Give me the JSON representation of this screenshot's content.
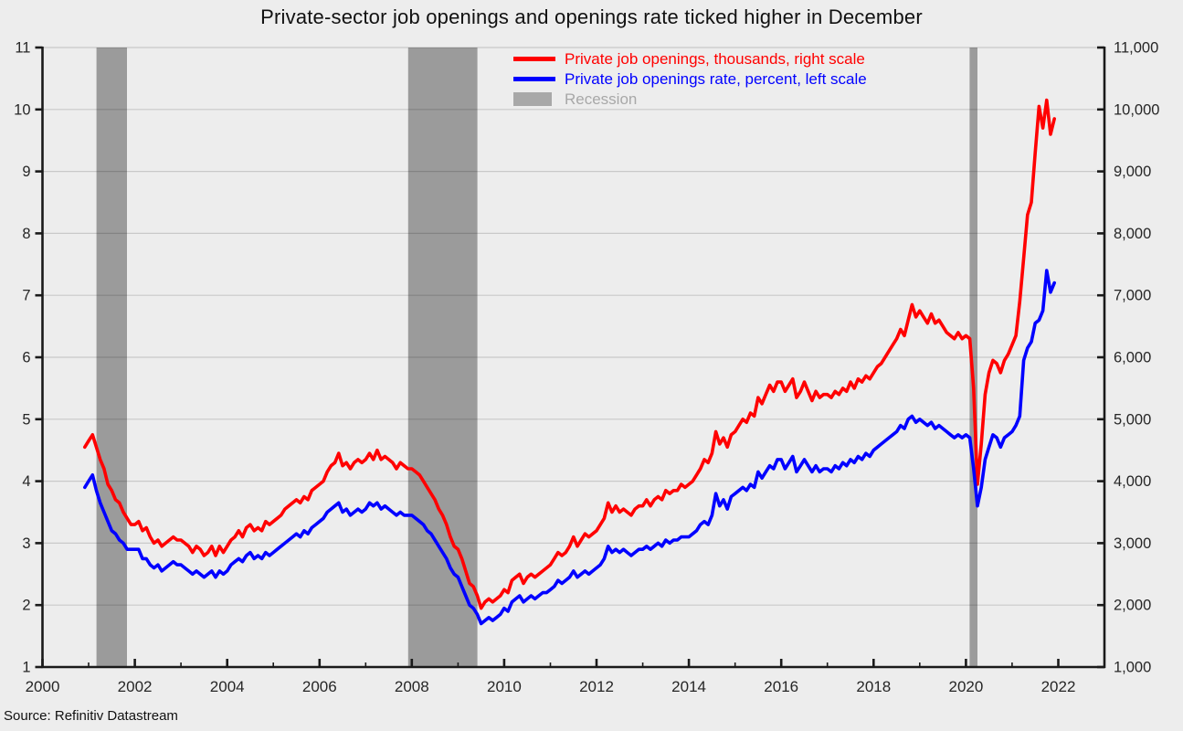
{
  "chart_data": {
    "type": "line",
    "title": "Private-sector job openings and openings rate ticked higher in December",
    "source": "Source: Refinitiv Datastream",
    "recession_label": "Recession",
    "x_axis": {
      "range": [
        2000,
        2023
      ],
      "major_ticks": [
        2000,
        2002,
        2004,
        2006,
        2008,
        2010,
        2012,
        2014,
        2016,
        2018,
        2020,
        2022
      ],
      "minor_ticks": [
        2001,
        2003,
        2005,
        2007,
        2009,
        2011,
        2013,
        2015,
        2017,
        2019,
        2021
      ]
    },
    "left_axis": {
      "units": "percent",
      "min": 1,
      "max": 11,
      "ticks": [
        1,
        2,
        3,
        4,
        5,
        6,
        7,
        8,
        9,
        10,
        11
      ],
      "tick_labels": [
        "1",
        "2",
        "3",
        "4",
        "5",
        "6",
        "7",
        "8",
        "9",
        "10",
        "11"
      ]
    },
    "right_axis": {
      "units": "thousands",
      "min": 1000,
      "max": 11000,
      "ticks": [
        1000,
        2000,
        3000,
        4000,
        5000,
        6000,
        7000,
        8000,
        9000,
        10000,
        11000
      ],
      "tick_labels": [
        "1,000",
        "2,000",
        "3,000",
        "4,000",
        "5,000",
        "6,000",
        "7,000",
        "8,000",
        "9,000",
        "10,000",
        "11,000"
      ]
    },
    "grid": {
      "horizontal": true,
      "vertical": false
    },
    "legend_position": "top-center",
    "recessions": [
      {
        "start": 2001.17,
        "end": 2001.83
      },
      {
        "start": 2007.92,
        "end": 2009.42
      },
      {
        "start": 2020.08,
        "end": 2020.25
      }
    ],
    "colors": {
      "background": "#ededed",
      "recession": "#9b9b9b",
      "recession_text": "#a8a8a8",
      "grid": "rgba(0,0,0,0.15)",
      "axis": "#1a1a1a",
      "tick_text": "#262626",
      "red_series": "#ff0000",
      "blue_series": "#0000ff"
    },
    "series": [
      {
        "name": "Private job openings, thousands, right scale",
        "color": "#ff0000",
        "axis": "right",
        "start_year": 2000.9167,
        "points_per_year": 12,
        "values": [
          4550,
          4650,
          4750,
          4550,
          4350,
          4200,
          3950,
          3850,
          3700,
          3650,
          3500,
          3400,
          3300,
          3300,
          3350,
          3200,
          3250,
          3100,
          3000,
          3050,
          2950,
          3000,
          3050,
          3100,
          3050,
          3050,
          3000,
          2950,
          2850,
          2950,
          2900,
          2800,
          2850,
          2950,
          2800,
          2950,
          2850,
          2950,
          3050,
          3100,
          3200,
          3100,
          3250,
          3300,
          3200,
          3250,
          3200,
          3350,
          3300,
          3350,
          3400,
          3450,
          3550,
          3600,
          3650,
          3700,
          3650,
          3750,
          3700,
          3850,
          3900,
          3950,
          4000,
          4150,
          4250,
          4300,
          4450,
          4250,
          4300,
          4200,
          4300,
          4350,
          4300,
          4350,
          4450,
          4350,
          4500,
          4350,
          4400,
          4350,
          4300,
          4200,
          4300,
          4250,
          4200,
          4200,
          4150,
          4100,
          4000,
          3900,
          3800,
          3700,
          3550,
          3450,
          3300,
          3100,
          2950,
          2900,
          2750,
          2550,
          2350,
          2300,
          2150,
          1950,
          2050,
          2100,
          2050,
          2100,
          2150,
          2250,
          2200,
          2400,
          2450,
          2500,
          2350,
          2450,
          2500,
          2450,
          2500,
          2550,
          2600,
          2650,
          2750,
          2850,
          2800,
          2850,
          2950,
          3100,
          2950,
          3050,
          3150,
          3100,
          3150,
          3200,
          3300,
          3400,
          3650,
          3500,
          3600,
          3500,
          3550,
          3500,
          3450,
          3550,
          3600,
          3600,
          3700,
          3600,
          3700,
          3750,
          3700,
          3850,
          3800,
          3850,
          3850,
          3950,
          3900,
          3950,
          4000,
          4100,
          4200,
          4350,
          4300,
          4450,
          4800,
          4600,
          4700,
          4550,
          4750,
          4800,
          4900,
          5000,
          4950,
          5100,
          5050,
          5350,
          5250,
          5400,
          5550,
          5450,
          5600,
          5600,
          5450,
          5550,
          5650,
          5350,
          5450,
          5600,
          5450,
          5300,
          5450,
          5350,
          5400,
          5400,
          5350,
          5450,
          5400,
          5500,
          5450,
          5600,
          5500,
          5650,
          5600,
          5700,
          5650,
          5750,
          5850,
          5900,
          6000,
          6100,
          6200,
          6300,
          6450,
          6350,
          6600,
          6850,
          6650,
          6750,
          6650,
          6550,
          6700,
          6550,
          6600,
          6500,
          6400,
          6350,
          6300,
          6400,
          6300,
          6350,
          6300,
          5500,
          3950,
          4600,
          5400,
          5750,
          5950,
          5900,
          5750,
          5950,
          6050,
          6200,
          6350,
          6900,
          7600,
          8300,
          8500,
          9300,
          10050,
          9700,
          10150,
          9600,
          9850
        ]
      },
      {
        "name": "Private job openings rate, percent, left scale",
        "color": "#0000ff",
        "axis": "left",
        "start_year": 2000.9167,
        "points_per_year": 12,
        "values": [
          3.9,
          4.0,
          4.1,
          3.85,
          3.65,
          3.5,
          3.35,
          3.2,
          3.15,
          3.05,
          3.0,
          2.9,
          2.9,
          2.9,
          2.9,
          2.75,
          2.75,
          2.65,
          2.6,
          2.65,
          2.55,
          2.6,
          2.65,
          2.7,
          2.65,
          2.65,
          2.6,
          2.55,
          2.5,
          2.55,
          2.5,
          2.45,
          2.5,
          2.55,
          2.45,
          2.55,
          2.5,
          2.55,
          2.65,
          2.7,
          2.75,
          2.7,
          2.8,
          2.85,
          2.75,
          2.8,
          2.75,
          2.85,
          2.8,
          2.85,
          2.9,
          2.95,
          3.0,
          3.05,
          3.1,
          3.15,
          3.1,
          3.2,
          3.15,
          3.25,
          3.3,
          3.35,
          3.4,
          3.5,
          3.55,
          3.6,
          3.65,
          3.5,
          3.55,
          3.45,
          3.5,
          3.55,
          3.5,
          3.55,
          3.65,
          3.6,
          3.65,
          3.55,
          3.6,
          3.55,
          3.5,
          3.45,
          3.5,
          3.45,
          3.45,
          3.45,
          3.4,
          3.35,
          3.3,
          3.2,
          3.15,
          3.05,
          2.95,
          2.85,
          2.75,
          2.6,
          2.5,
          2.45,
          2.3,
          2.15,
          2.0,
          1.95,
          1.85,
          1.7,
          1.75,
          1.8,
          1.75,
          1.8,
          1.85,
          1.95,
          1.9,
          2.05,
          2.1,
          2.15,
          2.05,
          2.1,
          2.15,
          2.1,
          2.15,
          2.2,
          2.2,
          2.25,
          2.3,
          2.4,
          2.35,
          2.4,
          2.45,
          2.55,
          2.45,
          2.5,
          2.55,
          2.5,
          2.55,
          2.6,
          2.65,
          2.75,
          2.95,
          2.85,
          2.9,
          2.85,
          2.9,
          2.85,
          2.8,
          2.85,
          2.9,
          2.9,
          2.95,
          2.9,
          2.95,
          3.0,
          2.95,
          3.05,
          3.0,
          3.05,
          3.05,
          3.1,
          3.1,
          3.1,
          3.15,
          3.2,
          3.3,
          3.35,
          3.3,
          3.45,
          3.8,
          3.6,
          3.7,
          3.55,
          3.75,
          3.8,
          3.85,
          3.9,
          3.85,
          3.95,
          3.9,
          4.15,
          4.05,
          4.15,
          4.25,
          4.2,
          4.35,
          4.35,
          4.2,
          4.3,
          4.4,
          4.15,
          4.25,
          4.35,
          4.25,
          4.15,
          4.25,
          4.15,
          4.2,
          4.2,
          4.15,
          4.25,
          4.2,
          4.3,
          4.25,
          4.35,
          4.3,
          4.4,
          4.35,
          4.45,
          4.4,
          4.5,
          4.55,
          4.6,
          4.65,
          4.7,
          4.75,
          4.8,
          4.9,
          4.85,
          5.0,
          5.05,
          4.95,
          5.0,
          4.95,
          4.9,
          4.95,
          4.85,
          4.9,
          4.85,
          4.8,
          4.75,
          4.7,
          4.75,
          4.7,
          4.75,
          4.7,
          4.2,
          3.6,
          3.9,
          4.35,
          4.55,
          4.75,
          4.7,
          4.55,
          4.7,
          4.75,
          4.8,
          4.9,
          5.05,
          5.95,
          6.15,
          6.25,
          6.55,
          6.6,
          6.75,
          7.4,
          7.05,
          7.2
        ]
      }
    ]
  }
}
